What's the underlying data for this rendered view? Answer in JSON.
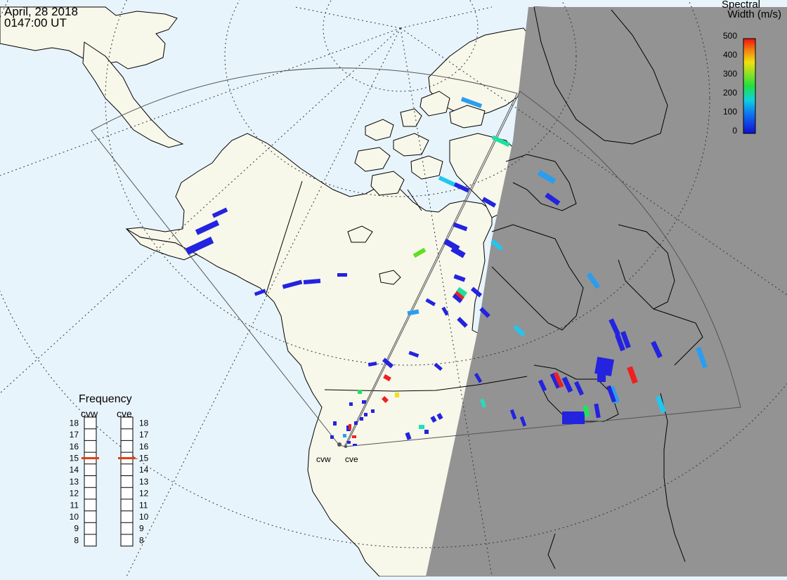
{
  "header": {
    "date": "April, 28 2018",
    "time": "0147:00 UT"
  },
  "legend": {
    "title_line1": "Spectral",
    "title_line2": "Width (m/s)",
    "ticks": [
      "500",
      "400",
      "300",
      "200",
      "100",
      "0"
    ]
  },
  "frequency": {
    "title": "Frequency",
    "radars": [
      "cvw",
      "cve"
    ],
    "ticks": [
      "18",
      "17",
      "16",
      "15",
      "14",
      "13",
      "12",
      "11",
      "10",
      "9",
      "8"
    ],
    "cvw_value": 15,
    "cve_value": 15
  },
  "map": {
    "radar_labels": [
      "cvw",
      "cve"
    ]
  },
  "colors": {
    "ocean": "#e8f4fc",
    "land": "#f7f7ea",
    "night": "#939393",
    "blue": "#2323e0",
    "light_blue": "#2a9df0",
    "cyan": "#1ee0e0",
    "green": "#24e060",
    "yellow": "#f0e020",
    "red": "#f02020",
    "frequency_marker": "#e04010"
  }
}
